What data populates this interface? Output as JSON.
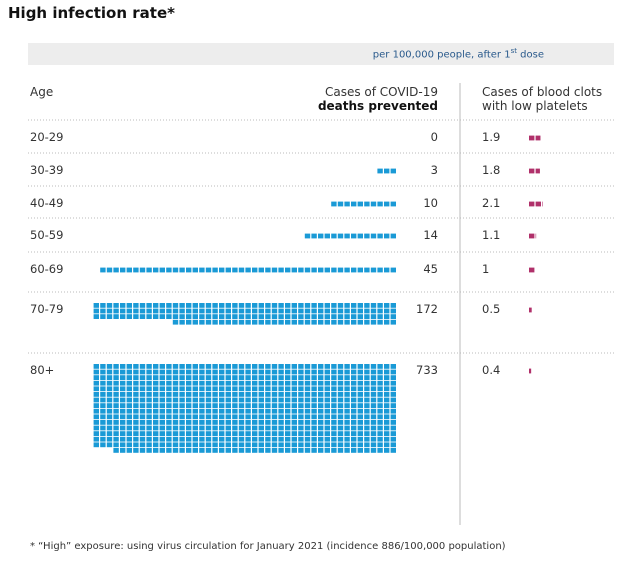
{
  "title": "High infection rate*",
  "subtitle_main": "per 100,000 people, after 1",
  "subtitle_sup": "st",
  "subtitle_rest": " dose",
  "footnote": "* “High” exposure: using virus circulation for January 2021 (incidence 886/100,000 population)",
  "colors": {
    "deaths": "#1a9ad6",
    "clots": "#b0306a",
    "grid": "#bbbbbb",
    "divider": "#bbbbbb"
  },
  "chart_data": {
    "type": "table",
    "column_headers": {
      "age": "Age",
      "deaths_line1": "Cases of COVID-19",
      "deaths_line2": "deaths prevented",
      "clots_line1": "Cases of blood clots",
      "clots_line2": "with low platelets"
    },
    "rows": [
      {
        "age": "20-29",
        "deaths_prevented": 0,
        "deaths_label": "0",
        "blood_clots": 1.9,
        "clots_label": "1.9"
      },
      {
        "age": "30-39",
        "deaths_prevented": 3,
        "deaths_label": "3",
        "blood_clots": 1.8,
        "clots_label": "1.8"
      },
      {
        "age": "40-49",
        "deaths_prevented": 10,
        "deaths_label": "10",
        "blood_clots": 2.1,
        "clots_label": "2.1"
      },
      {
        "age": "50-59",
        "deaths_prevented": 14,
        "deaths_label": "14",
        "blood_clots": 1.1,
        "clots_label": "1.1"
      },
      {
        "age": "60-69",
        "deaths_prevented": 45,
        "deaths_label": "45",
        "blood_clots": 1,
        "clots_label": "1"
      },
      {
        "age": "70-79",
        "deaths_prevented": 172,
        "deaths_label": "172",
        "blood_clots": 0.5,
        "clots_label": "0.5"
      },
      {
        "age": "80+",
        "deaths_prevented": 733,
        "deaths_label": "733",
        "blood_clots": 0.4,
        "clots_label": "0.4"
      }
    ]
  }
}
